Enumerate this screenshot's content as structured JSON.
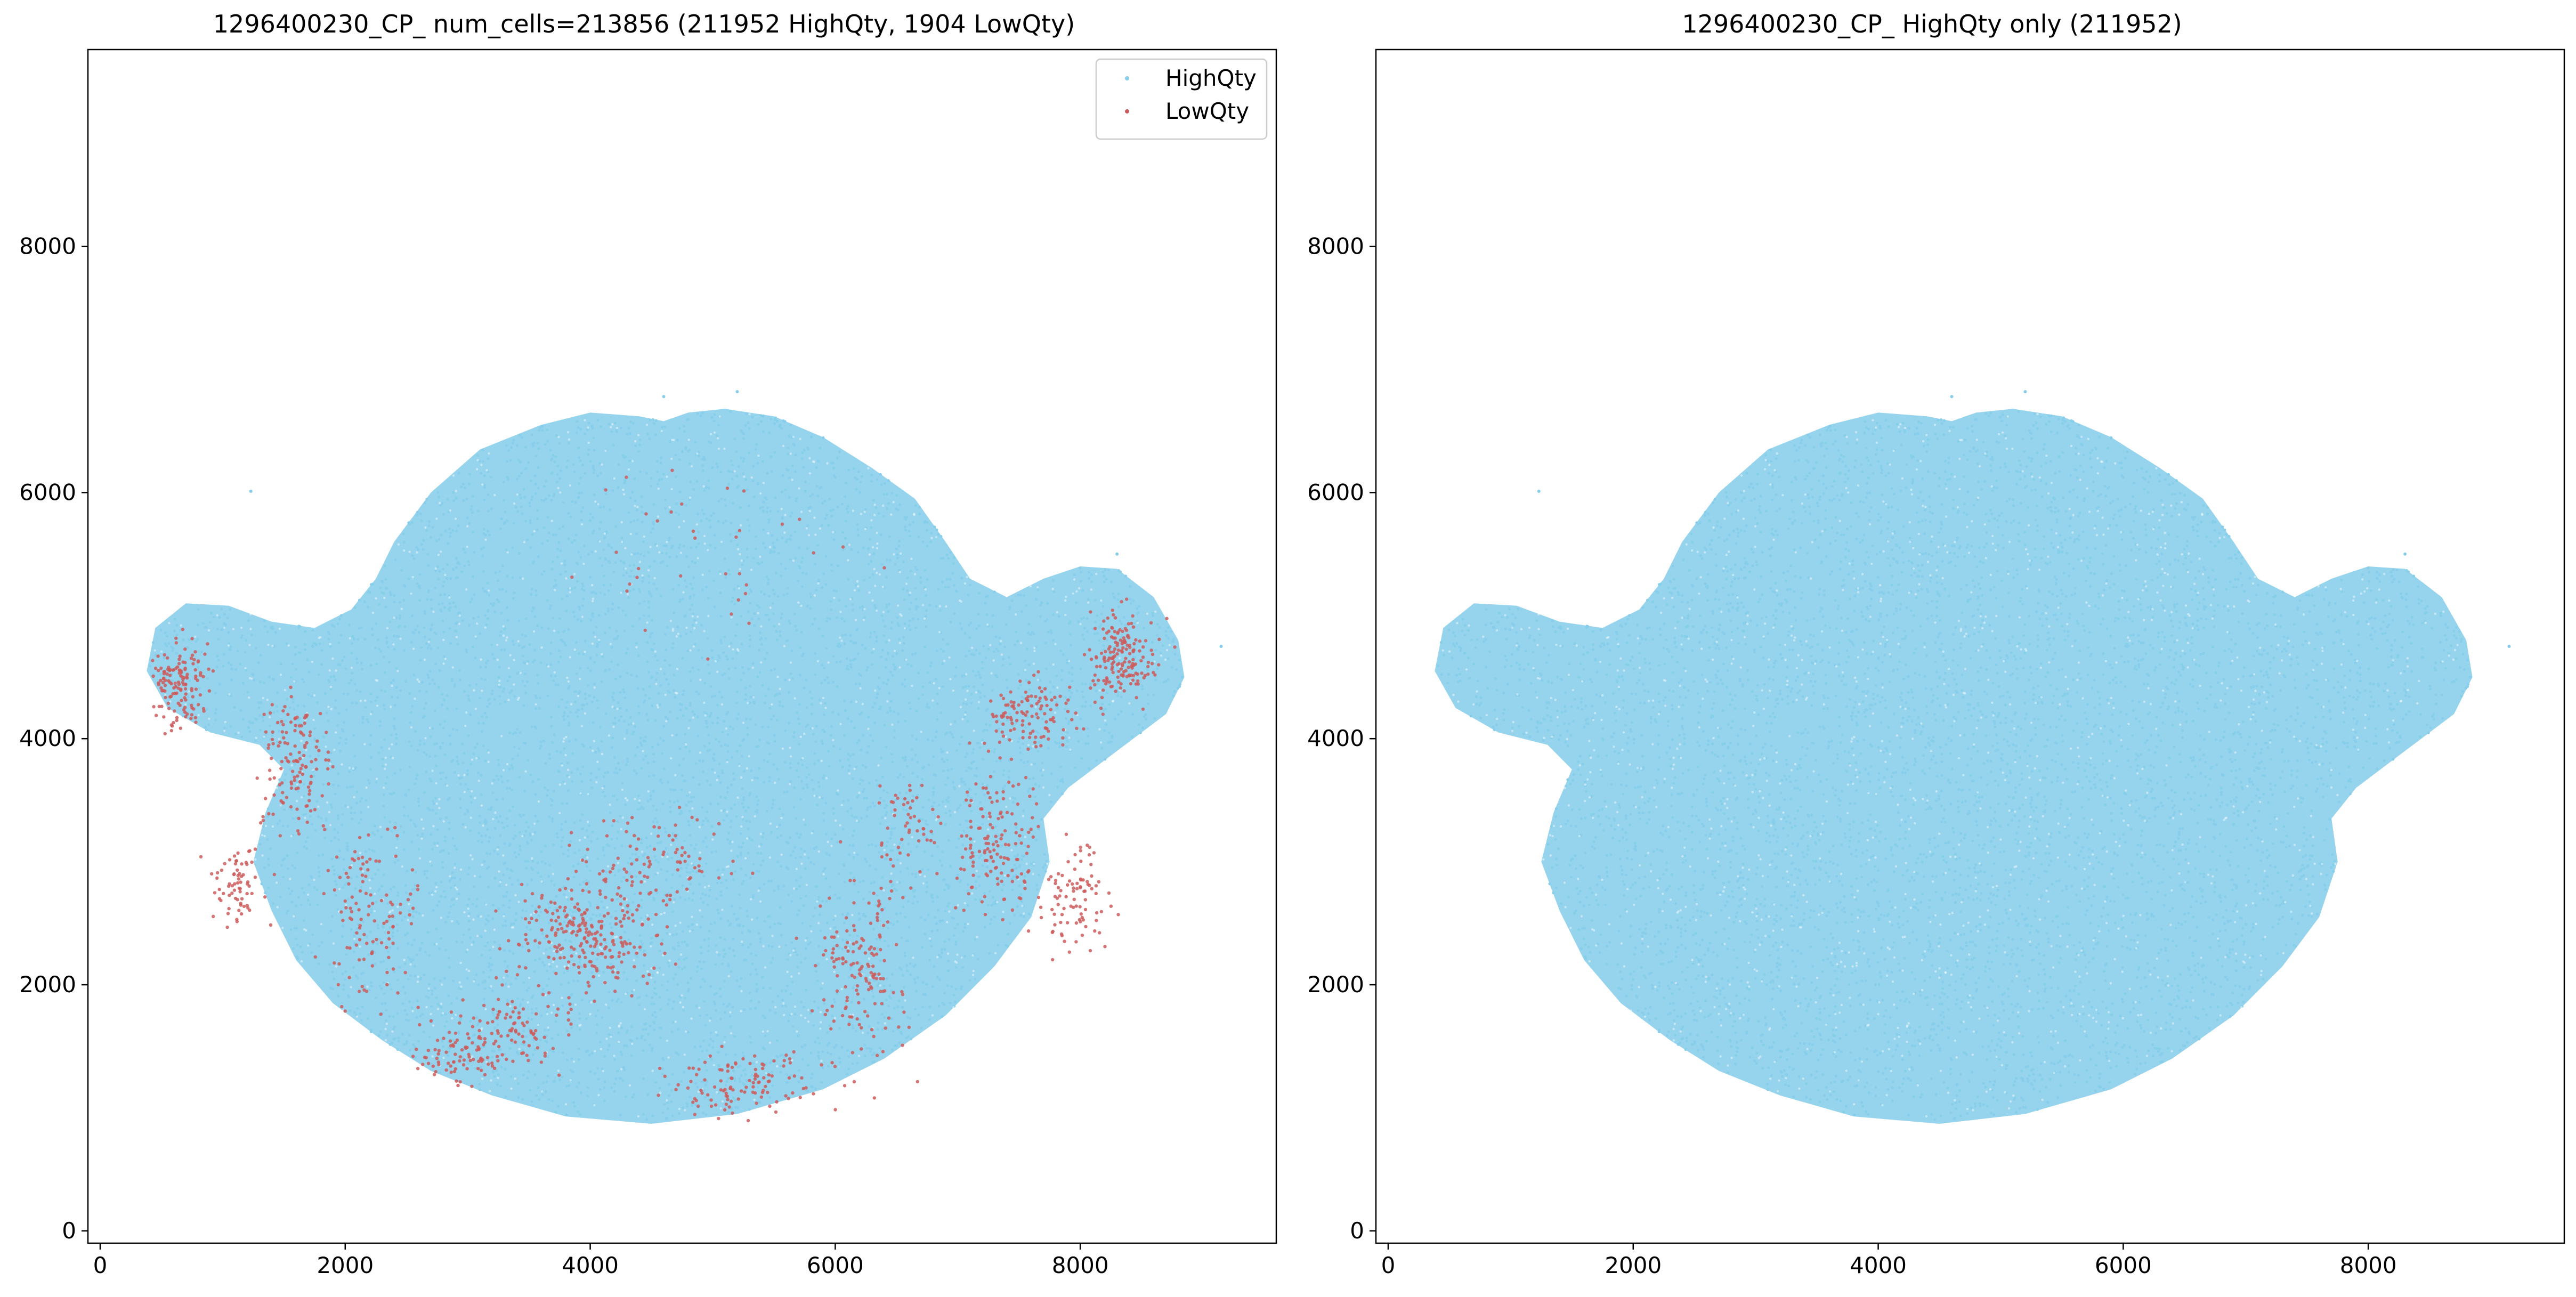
{
  "chart_data": [
    {
      "type": "scatter",
      "title": "1296400230_CP_ num_cells=213856 (211952 HighQty, 1904 LowQty)",
      "xlabel": "",
      "ylabel": "",
      "xlim": [
        -100,
        9600
      ],
      "ylim": [
        -100,
        9600
      ],
      "xticks": [
        0,
        2000,
        4000,
        6000,
        8000
      ],
      "yticks": [
        0,
        2000,
        4000,
        6000,
        8000
      ],
      "grid": false,
      "legend_position": "top-right",
      "series": [
        {
          "name": "HighQty",
          "color": "#87ceeb",
          "count": 211952
        },
        {
          "name": "LowQty",
          "color": "#cd5c5c",
          "count": 1904
        }
      ]
    },
    {
      "type": "scatter",
      "title": "1296400230_CP_ HighQty only (211952)",
      "xlabel": "",
      "ylabel": "",
      "xlim": [
        -100,
        9600
      ],
      "ylim": [
        -100,
        9600
      ],
      "xticks": [
        0,
        2000,
        4000,
        6000,
        8000
      ],
      "yticks": [
        0,
        2000,
        4000,
        6000,
        8000
      ],
      "grid": false,
      "series": [
        {
          "color": "#87ceeb",
          "count": 211952
        }
      ]
    }
  ]
}
